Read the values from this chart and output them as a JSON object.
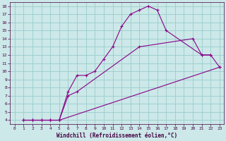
{
  "xlabel": "Windchill (Refroidissement éolien,°C)",
  "bg_color": "#cce8e8",
  "line_color": "#880088",
  "grid_color": "#99cccc",
  "xlim": [
    -0.5,
    23.5
  ],
  "ylim": [
    3.5,
    18.5
  ],
  "xticks": [
    0,
    1,
    2,
    3,
    4,
    5,
    6,
    7,
    8,
    9,
    10,
    11,
    12,
    13,
    14,
    15,
    16,
    17,
    18,
    19,
    20,
    21,
    22,
    23
  ],
  "yticks": [
    4,
    5,
    6,
    7,
    8,
    9,
    10,
    11,
    12,
    13,
    14,
    15,
    16,
    17,
    18
  ],
  "line1_x": [
    1,
    2,
    3,
    4,
    5,
    6,
    7,
    8,
    9,
    10,
    11,
    12,
    13,
    14,
    15,
    16,
    17,
    21,
    22
  ],
  "line1_y": [
    4,
    4,
    4,
    4,
    4,
    7.5,
    9.5,
    9.5,
    10,
    11.5,
    13,
    15.5,
    17,
    17.5,
    18,
    17.5,
    15,
    12,
    12
  ],
  "line2_x": [
    1,
    2,
    3,
    4,
    5,
    6,
    7,
    14,
    20,
    21,
    22,
    23
  ],
  "line2_y": [
    4,
    4,
    4,
    4,
    4,
    7,
    7.5,
    13,
    14,
    12,
    12,
    10.5
  ],
  "line3_x": [
    1,
    2,
    3,
    4,
    5,
    23
  ],
  "line3_y": [
    4,
    4,
    4,
    4,
    4,
    10.5
  ]
}
